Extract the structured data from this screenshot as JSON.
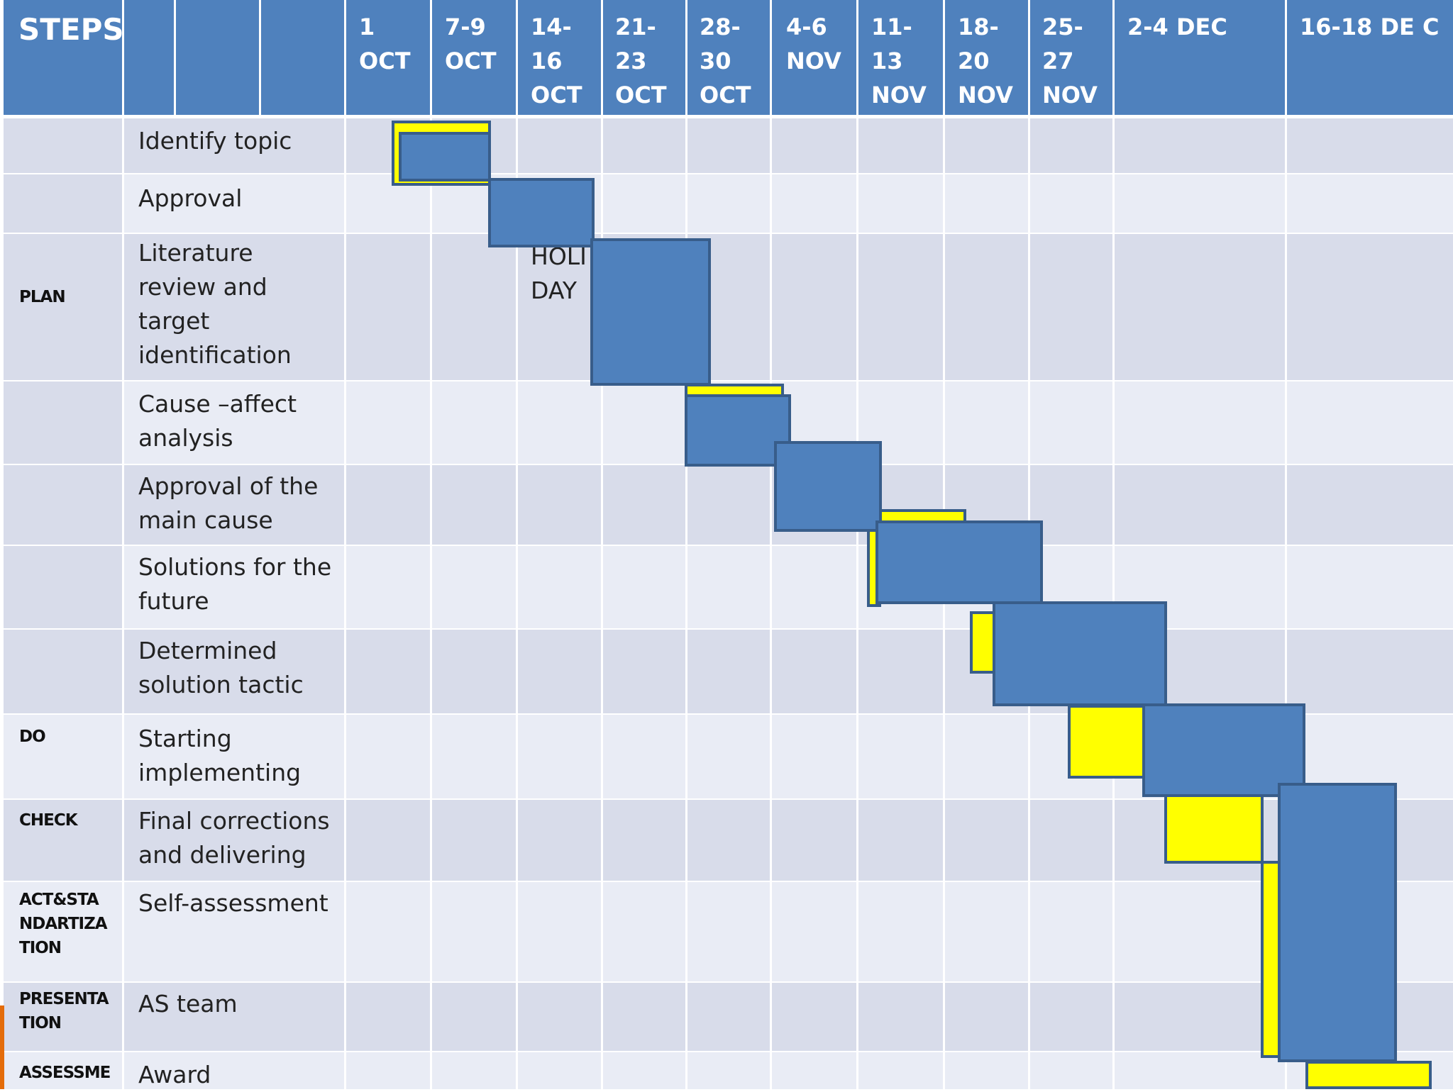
{
  "header": {
    "steps_label": "STEPS",
    "weeks": [
      "1\nOCT",
      "7-9\nOCT",
      "14-\n16\nOCT",
      "21-\n23\nOCT",
      "28-\n30\nOCT",
      "4-6\nNOV",
      "11-\n13\nNOV",
      "18-\n20\nNOV",
      "25-\n27\nNOV",
      "2-4  DEC",
      "16-18 DE C"
    ]
  },
  "phases": [
    {
      "label": "PLAN"
    },
    {
      "label": "DO"
    },
    {
      "label": "CHECK"
    },
    {
      "label": "ACT&STA\nNDARTIZA\nTION"
    },
    {
      "label": "PRESENTA\nTION"
    },
    {
      "label": "ASSESSME"
    }
  ],
  "tasks": [
    {
      "label": "Identify topic"
    },
    {
      "label": "Approval"
    },
    {
      "label": "Literature\nreview and\ntarget\nidentification"
    },
    {
      "label": "Cause –affect\nanalysis"
    },
    {
      "label": "Approval of the\nmain cause"
    },
    {
      "label": "Solutions for the\nfuture"
    },
    {
      "label": "Determined\nsolution tactic"
    },
    {
      "label": "Starting\nimplementing"
    },
    {
      "label": "Final corrections\nand delivering"
    },
    {
      "label": "Self-assessment"
    },
    {
      "label": "AS team"
    },
    {
      "label": "Award"
    }
  ],
  "notes": {
    "holiday": "HOLI\nDAY"
  },
  "legend_colors": {
    "planned": "#ffff00",
    "actual": "#4f81bd"
  },
  "timeline": {
    "planned_bars": [
      {
        "task": "Identify topic",
        "start_week": 1,
        "end_week": 2
      },
      {
        "task": "Cause –affect analysis",
        "start_week": 5,
        "end_week": 5
      },
      {
        "task": "Solutions for the future",
        "start_week": 7,
        "end_week": 7
      },
      {
        "task": "Determined solution tactic",
        "start_week": 8,
        "end_week": 8
      },
      {
        "task": "Starting implementing",
        "start_week": 9,
        "end_week": 9
      },
      {
        "task": "Final corrections and delivering",
        "start_week": 10,
        "end_week": 10
      },
      {
        "task": "Self-assessment / AS team",
        "start_week": 10,
        "end_week": 10
      },
      {
        "task": "Award",
        "start_week": 11,
        "end_week": 11
      }
    ],
    "actual_bars": [
      {
        "task": "Identify topic",
        "start_week": 1,
        "end_week": 2
      },
      {
        "task": "Approval",
        "start_week": 2,
        "end_week": 3
      },
      {
        "task": "Literature review and target identification",
        "start_week": 3,
        "end_week": 4
      },
      {
        "task": "Cause –affect analysis",
        "start_week": 5,
        "end_week": 5
      },
      {
        "task": "Approval of the main cause",
        "start_week": 6,
        "end_week": 6
      },
      {
        "task": "Solutions for the future",
        "start_week": 7,
        "end_week": 8
      },
      {
        "task": "Determined solution tactic",
        "start_week": 8,
        "end_week": 9
      },
      {
        "task": "Starting implementing",
        "start_week": 10,
        "end_week": 10
      },
      {
        "task": "Final corrections through AS team",
        "start_week": 10,
        "end_week": 11
      }
    ]
  }
}
